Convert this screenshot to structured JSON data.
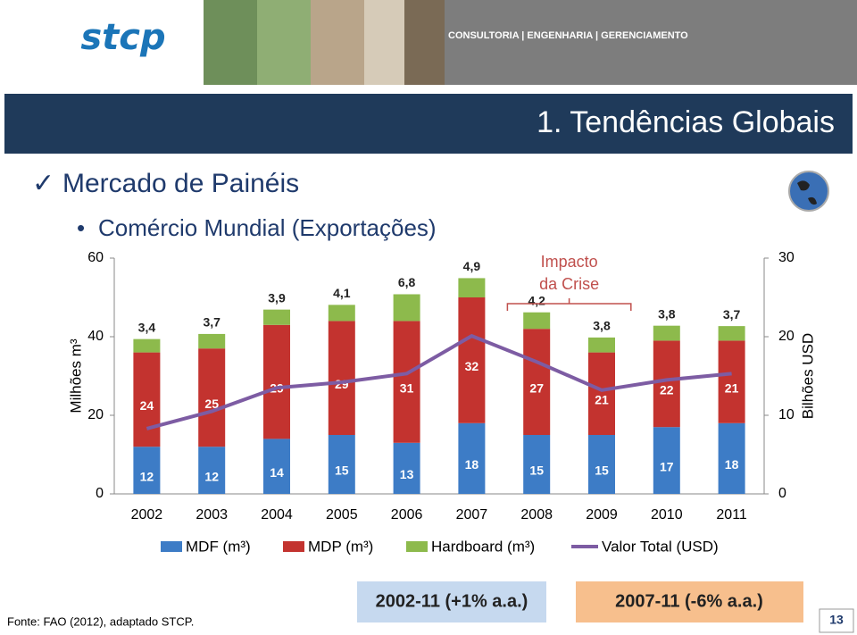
{
  "header": {
    "logo": "stcp",
    "tagline": "CONSULTORIA | ENGENHARIA | GERENCIAMENTO"
  },
  "title": "1. Tendências Globais",
  "bullets": [
    "Mercado de Painéis",
    "Comércio Mundial (Exportações)"
  ],
  "chart_data": {
    "type": "bar",
    "categories": [
      "2002",
      "2003",
      "2004",
      "2005",
      "2006",
      "2007",
      "2008",
      "2009",
      "2010",
      "2011"
    ],
    "ylabel": "Milhões m³",
    "y2label": "Bilhões USD",
    "ylim": [
      0,
      60
    ],
    "yticks": [
      0,
      20,
      40,
      60
    ],
    "y2lim": [
      0,
      30
    ],
    "y2ticks": [
      0,
      10,
      20,
      30
    ],
    "stacked": true,
    "legend": "bottom",
    "annotation": [
      "Impacto",
      "da Crise"
    ],
    "series": [
      {
        "name": "MDF (m³)",
        "type": "bar",
        "color": "#3d7cc6",
        "values": [
          12,
          12,
          14,
          15,
          13,
          18,
          15,
          15,
          17,
          18
        ]
      },
      {
        "name": "MDP (m³)",
        "type": "bar",
        "color": "#c3332f",
        "values": [
          24,
          25,
          29,
          29,
          31,
          32,
          27,
          21,
          22,
          21
        ]
      },
      {
        "name": "Hardboard (m³)",
        "type": "bar",
        "color": "#8dba4c",
        "values": [
          3.4,
          3.7,
          3.9,
          4.1,
          6.8,
          4.9,
          4.2,
          3.8,
          3.8,
          3.7
        ],
        "value_labels": [
          "3,4",
          "3,7",
          "3,9",
          "4,1",
          "6,8",
          "4,9",
          "4,2",
          "3,8",
          "3,8",
          "3,7"
        ]
      },
      {
        "name": "Valor Total (USD)",
        "type": "line",
        "axis": "y2",
        "color": "#7d5ca3",
        "values": [
          8.3,
          10.5,
          13.5,
          14.2,
          15.3,
          20.1,
          16.8,
          13.2,
          14.5,
          15.3
        ]
      }
    ]
  },
  "boxes": [
    "2002-11 (+1% a.a.)",
    "2007-11 (-6% a.a.)"
  ],
  "footer": {
    "source": "Fonte: FAO (2012), adaptado STCP.",
    "page": "13"
  }
}
